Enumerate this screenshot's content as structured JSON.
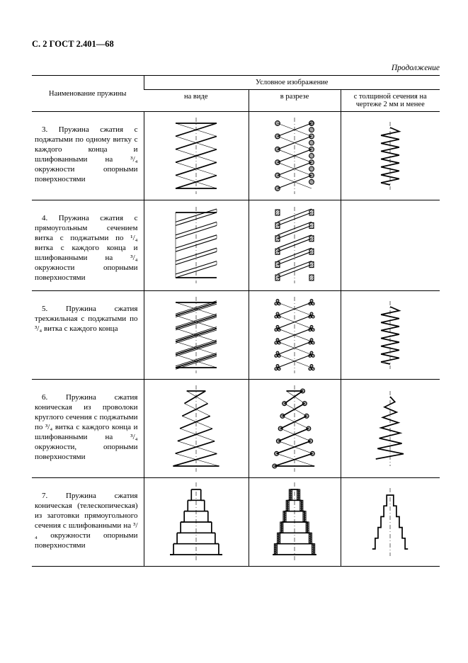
{
  "page_label": "С. 2 ГОСТ 2.401—68",
  "continuation": "Продолжение",
  "headers": {
    "name": "Наименование пружины",
    "group": "Условное изображение",
    "col_a": "на виде",
    "col_b": "в разрезе",
    "col_c": "с толщиной сечения на чертеже 2 мм и менее"
  },
  "rows": [
    {
      "num": "3.",
      "text": "Пружина сжатия с поджатыми по одному витку с каждого конца и шлифованными на ³/₄ окружности опорными поверхностями",
      "type": "cyl_round",
      "turns": 5,
      "simplified": true
    },
    {
      "num": "4.",
      "text": "Пружина сжатия с прямоугольным сечением витка с поджатыми по ¹/₄ витка с каждого конца и шлифованными на ³/₄ окружности опорными поверхностями",
      "type": "cyl_rect",
      "turns": 5,
      "simplified": false
    },
    {
      "num": "5.",
      "text": "Пружина сжатия трехжильная с поджатыми по ³/₄ витка с каждого конца",
      "type": "cyl_triple",
      "turns": 5,
      "simplified": true
    },
    {
      "num": "6.",
      "text": "Пружина сжатия коническая из проволоки круглого сечения с поджатыми по ³/₄ витка с каждого конца и шлифованными на ³/₄ окружности, опорными поверхностями",
      "type": "cone_round",
      "turns": 6,
      "simplified": true
    },
    {
      "num": "7.",
      "text": "Пружина сжатия коническая (телескопическая) из заготовки прямоугольного сечения с шлифованными на ³/₄ окружности опорными поверхностями",
      "type": "telescope",
      "turns": 6,
      "simplified": true
    }
  ],
  "style": {
    "stroke": "#000000",
    "line_width_heavy": 1.7,
    "line_width_med": 1.1,
    "line_width_thin": 0.6,
    "hatch_color": "#000000",
    "dashdot": "6 3 1 3",
    "spring_view_w": 74,
    "spring_view_h": 98,
    "spring_section_w": 64,
    "spring_section_h": 98,
    "spring_simple_w": 46,
    "spring_simple_h": 86,
    "cone_h": 112,
    "tele_h": 100
  }
}
